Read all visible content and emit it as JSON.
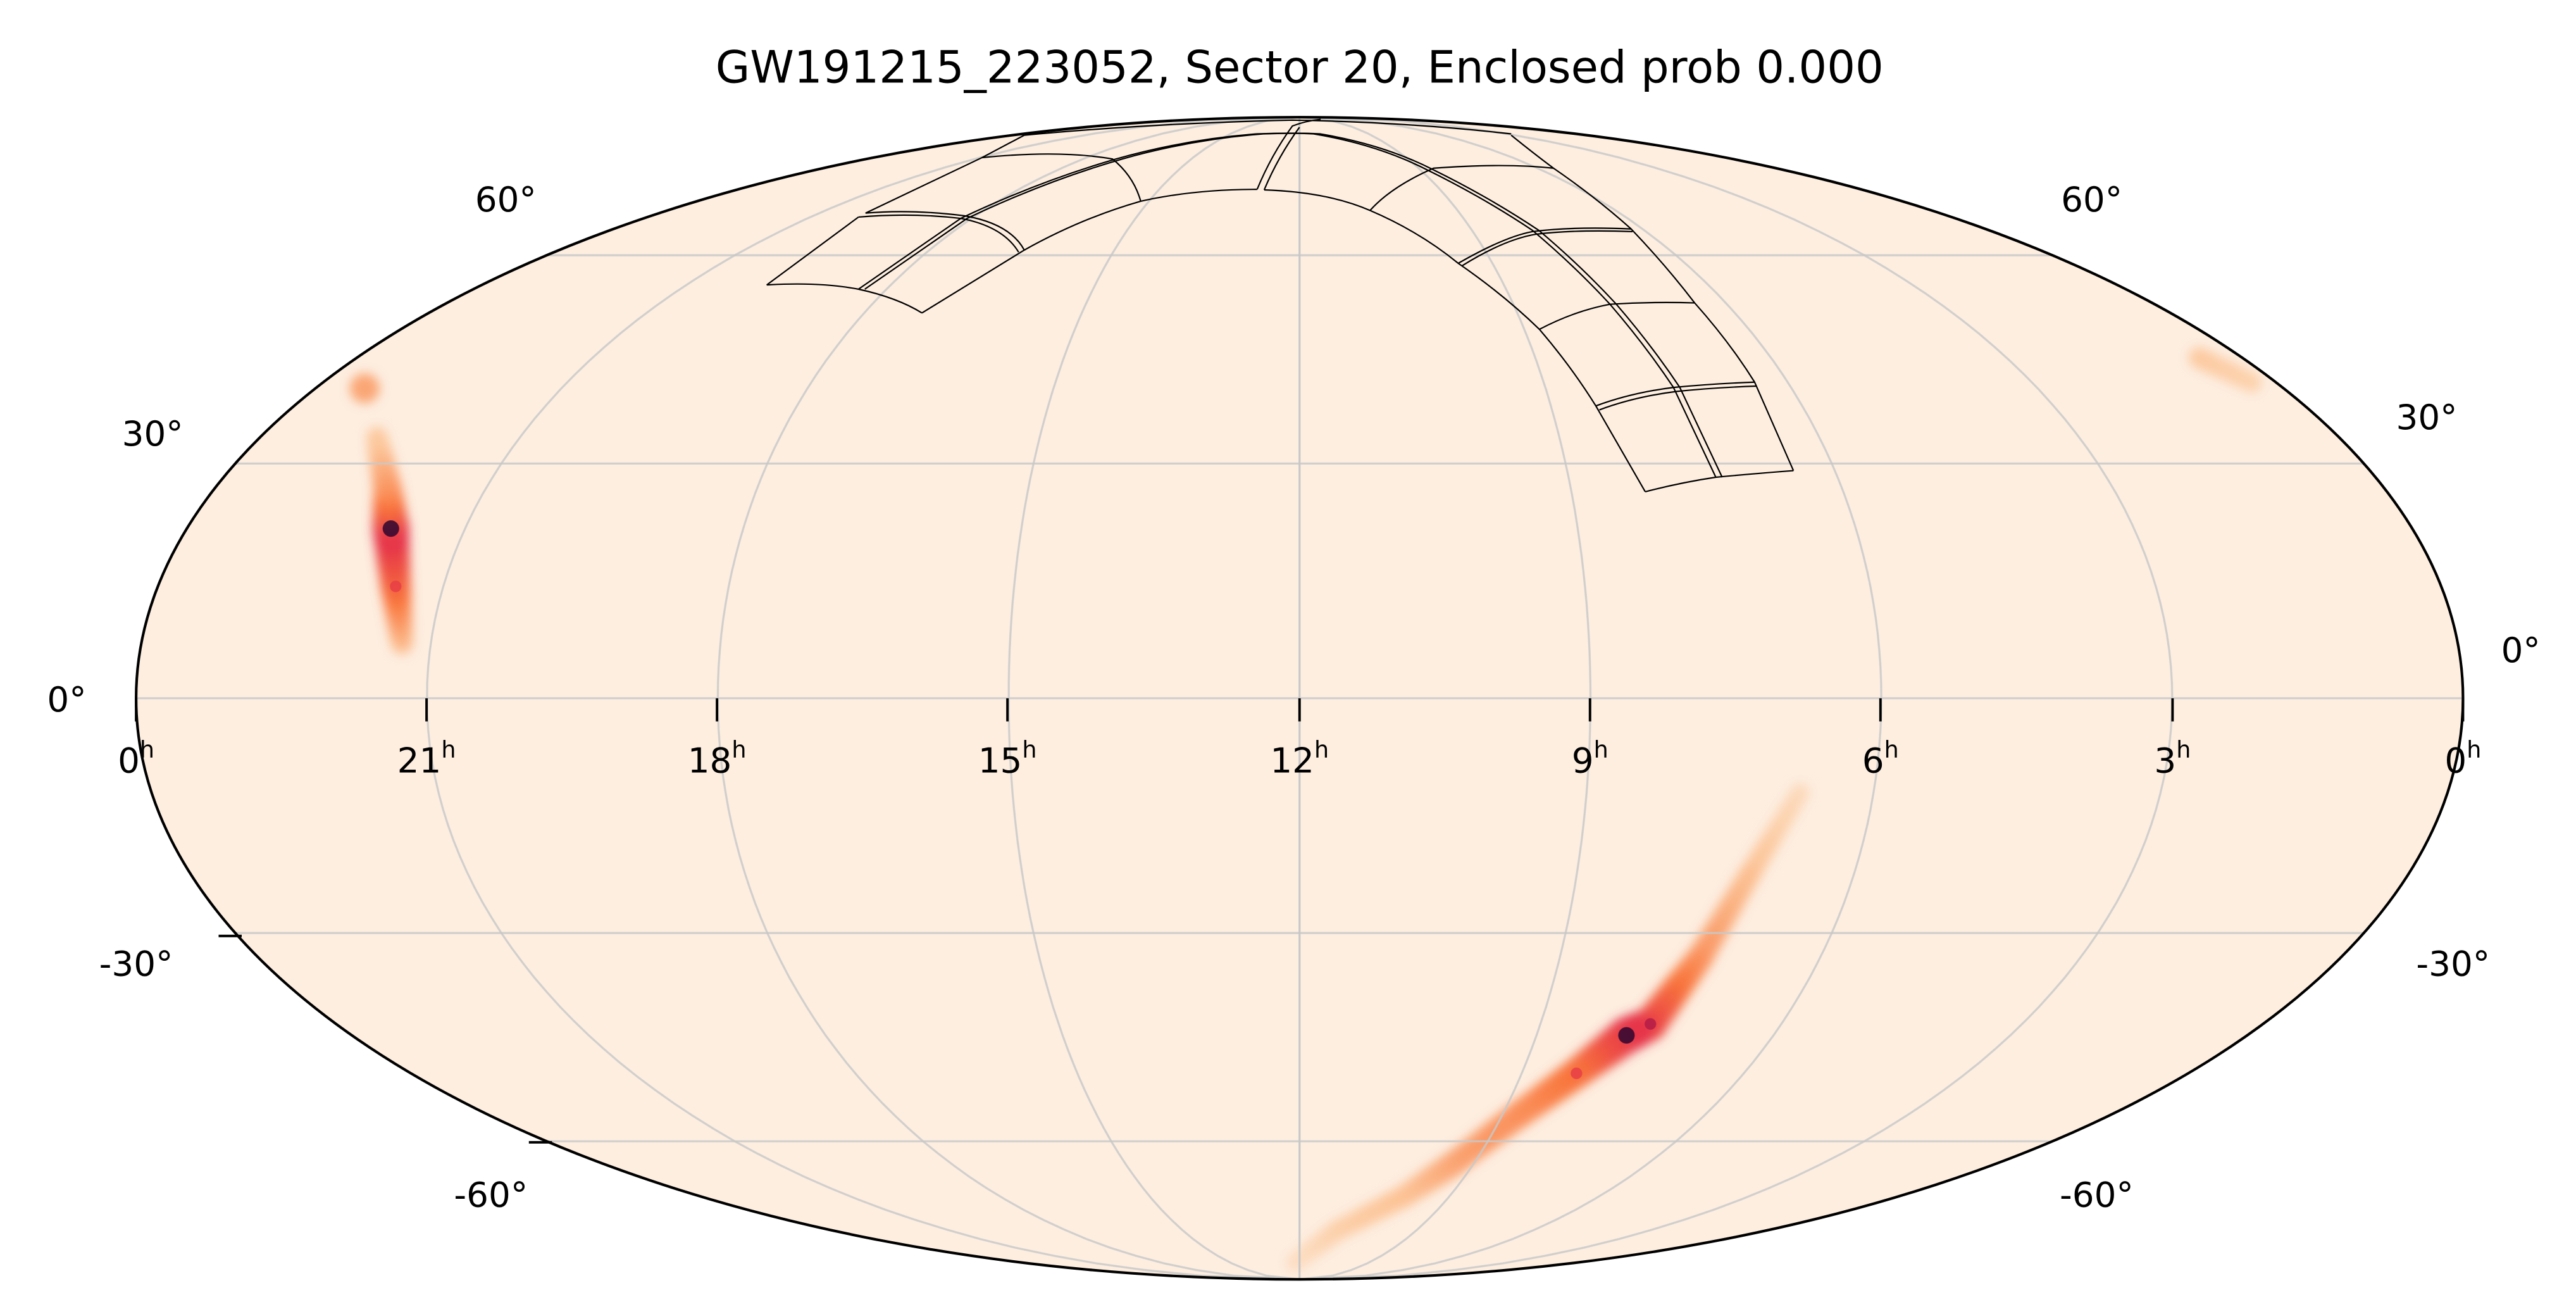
{
  "chart_data": {
    "type": "heatmap",
    "projection": "mollweide",
    "title": "GW191215_223052, Sector 20, Enclosed prob 0.000",
    "event": "GW191215_223052",
    "sector": 20,
    "enclosed_prob": 0.0,
    "xlabel": "",
    "ylabel": "",
    "grid": true,
    "ra_ticks": [
      "0h",
      "21h",
      "18h",
      "15h",
      "12h",
      "9h",
      "6h",
      "3h",
      "0h"
    ],
    "ra_tick_labels": [
      {
        "main": "0",
        "sup": "h"
      },
      {
        "main": "21",
        "sup": "h"
      },
      {
        "main": "18",
        "sup": "h"
      },
      {
        "main": "15",
        "sup": "h"
      },
      {
        "main": "12",
        "sup": "h"
      },
      {
        "main": "9",
        "sup": "h"
      },
      {
        "main": "6",
        "sup": "h"
      },
      {
        "main": "3",
        "sup": "h"
      },
      {
        "main": "0",
        "sup": "h"
      }
    ],
    "dec_ticks": {
      "left": [
        "60°",
        "30°",
        "0°",
        "-30°",
        "-60°"
      ],
      "right": [
        "60°",
        "30°",
        "0°",
        "-30°",
        "-60°"
      ]
    },
    "graticule": {
      "ra_step_hours": 3,
      "dec_lines": [
        -60,
        -30,
        0,
        30,
        60
      ]
    },
    "probability_hotspots": [
      {
        "region": "north",
        "ra_h": 21.3,
        "dec": 6.9,
        "weight": 0.3
      },
      {
        "region": "north",
        "ra_h": 21.5,
        "dec": 14.1,
        "weight": 0.7
      },
      {
        "region": "north",
        "ra_h": 21.8,
        "dec": 21.5,
        "weight": 1.0
      },
      {
        "region": "north",
        "ra_h": 22.1,
        "dec": 26.9,
        "weight": 0.55
      },
      {
        "region": "north",
        "ra_h": 22.65,
        "dec": 33.5,
        "weight": 0.25
      },
      {
        "region": "north2",
        "ra_h": 23.4,
        "dec": 40.2,
        "weight": 0.4
      },
      {
        "region": "wrap",
        "ra_h": 0.55,
        "dec": 44.5,
        "weight": 0.25
      },
      {
        "region": "wrap",
        "ra_h": 0.3,
        "dec": 41.0,
        "weight": 0.2
      },
      {
        "region": "south",
        "ra_h": 6.77,
        "dec": -11.9,
        "weight": 0.15
      },
      {
        "region": "south",
        "ra_h": 7.13,
        "dec": -22.4,
        "weight": 0.3
      },
      {
        "region": "south",
        "ra_h": 7.38,
        "dec": -33.2,
        "weight": 0.5
      },
      {
        "region": "south",
        "ra_h": 7.63,
        "dec": -42.4,
        "weight": 0.85
      },
      {
        "region": "south",
        "ra_h": 7.86,
        "dec": -44.0,
        "weight": 1.0
      },
      {
        "region": "south",
        "ra_h": 8.26,
        "dec": -49.5,
        "weight": 0.7
      },
      {
        "region": "south",
        "ra_h": 8.75,
        "dec": -55.7,
        "weight": 0.55
      },
      {
        "region": "south",
        "ra_h": 9.35,
        "dec": -63.8,
        "weight": 0.45
      },
      {
        "region": "south",
        "ra_h": 9.91,
        "dec": -69.5,
        "weight": 0.3
      },
      {
        "region": "south",
        "ra_h": 11.03,
        "dec": -76.2,
        "weight": 0.22
      },
      {
        "region": "south",
        "ra_h": 12.2,
        "dec": -83.8,
        "weight": 0.12
      }
    ],
    "colors": {
      "background": "#fdeee0",
      "low": "#fcc79b",
      "mid": "#f8753c",
      "high": "#e0234d",
      "peak": "#2d0630",
      "grid": "#c8c8c8",
      "footprint": "#000000"
    }
  }
}
